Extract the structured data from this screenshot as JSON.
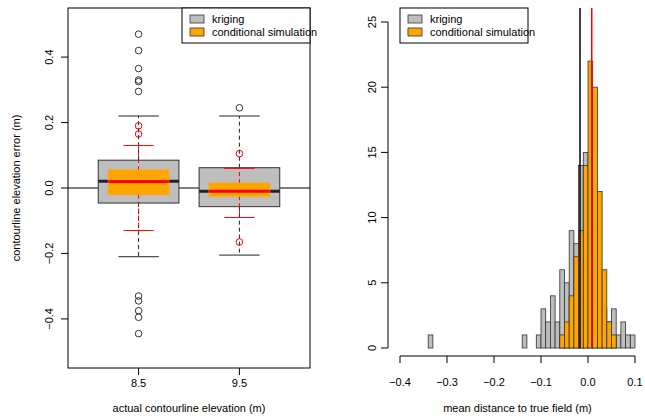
{
  "chart_data": [
    {
      "type": "box",
      "x_label": "actual contourline elevation (m)",
      "y_label": "contourline elevation error (m)",
      "categories": [
        "8.5",
        "9.5"
      ],
      "ylim": [
        -0.55,
        0.55
      ],
      "yticks": [
        {
          "value": -0.4,
          "label": "−0.4"
        },
        {
          "value": -0.2,
          "label": "−0.2"
        },
        {
          "value": 0,
          "label": "0.0"
        },
        0.2,
        0.4
      ],
      "reference_line": 0,
      "legend": "topright",
      "series": [
        {
          "name": "kriging",
          "color": "#bebebe",
          "q1": [
            -0.046,
            -0.057
          ],
          "median": [
            0.021,
            -0.01
          ],
          "q3": [
            0.085,
            0.062
          ],
          "whisker_low": [
            -0.21,
            -0.205
          ],
          "whisker_high": [
            0.22,
            0.22
          ],
          "outliers": [
            [
              0.295,
              0.325,
              0.33,
              0.365,
              0.42,
              0.47,
              -0.33,
              -0.345,
              -0.375,
              -0.395,
              -0.445
            ],
            [
              0.245
            ]
          ]
        },
        {
          "name": "conditional simulation",
          "color": "#ffa500",
          "q1": [
            -0.02,
            -0.025
          ],
          "median": [
            0.02,
            -0.01
          ],
          "q3": [
            0.055,
            0.015
          ],
          "whisker_low": [
            -0.13,
            -0.09
          ],
          "whisker_high": [
            0.13,
            0.06
          ],
          "outliers": [
            [
              0.165,
              0.19
            ],
            [
              0.105,
              -0.165
            ]
          ]
        }
      ]
    },
    {
      "type": "histogram",
      "x_label": "mean distance to true field (m)",
      "bins": [
        -0.4,
        -0.39,
        -0.38,
        -0.37,
        -0.36,
        -0.35,
        -0.34,
        -0.33,
        -0.32,
        -0.31,
        -0.3,
        -0.29,
        -0.28,
        -0.27,
        -0.26,
        -0.25,
        -0.24,
        -0.23,
        -0.22,
        -0.21,
        -0.2,
        -0.19,
        -0.18,
        -0.17,
        -0.16,
        -0.15,
        -0.14,
        -0.13,
        -0.12,
        -0.11,
        -0.1,
        -0.09,
        -0.08,
        -0.07,
        -0.06,
        -0.05,
        -0.04,
        -0.03,
        -0.02,
        -0.01,
        0,
        0.01,
        0.02,
        0.03,
        0.04,
        0.05,
        0.06,
        0.07,
        0.08,
        0.09,
        0.1
      ],
      "xlim": [
        -0.4,
        0.1
      ],
      "xticks": [
        {
          "value": -0.4,
          "label": "−0.4"
        },
        {
          "value": -0.3,
          "label": "−0.3"
        },
        {
          "value": -0.2,
          "label": "−0.2"
        },
        {
          "value": -0.1,
          "label": "−0.1"
        },
        {
          "value": 0,
          "label": "0.0"
        },
        0.1
      ],
      "ylim": [
        0,
        25
      ],
      "yticks": [
        0,
        5,
        10,
        15,
        20,
        25
      ],
      "legend": "topleft",
      "series": [
        {
          "name": "kriging",
          "color": "#bebebe",
          "values": [
            0,
            0,
            0,
            0,
            0,
            0,
            1,
            0,
            0,
            0,
            0,
            0,
            0,
            0,
            0,
            0,
            0,
            0,
            0,
            0,
            0,
            0,
            0,
            0,
            0,
            0,
            1,
            0,
            0,
            1,
            3,
            2,
            4,
            2,
            6,
            5,
            9,
            8,
            14,
            15,
            12,
            8,
            5,
            3,
            2,
            3,
            1,
            2,
            1,
            1
          ],
          "mean": -0.017
        },
        {
          "name": "conditional simulation",
          "color": "#ffa500",
          "values": [
            0,
            0,
            0,
            0,
            0,
            0,
            0,
            0,
            0,
            0,
            0,
            0,
            0,
            0,
            0,
            0,
            0,
            0,
            0,
            0,
            0,
            0,
            0,
            0,
            0,
            0,
            0,
            0,
            0,
            0,
            0,
            0,
            0,
            0,
            1,
            2,
            4,
            7,
            9,
            14,
            22,
            20,
            12,
            6,
            2,
            1,
            0,
            0,
            0,
            0
          ],
          "mean": 0.008
        }
      ]
    }
  ]
}
